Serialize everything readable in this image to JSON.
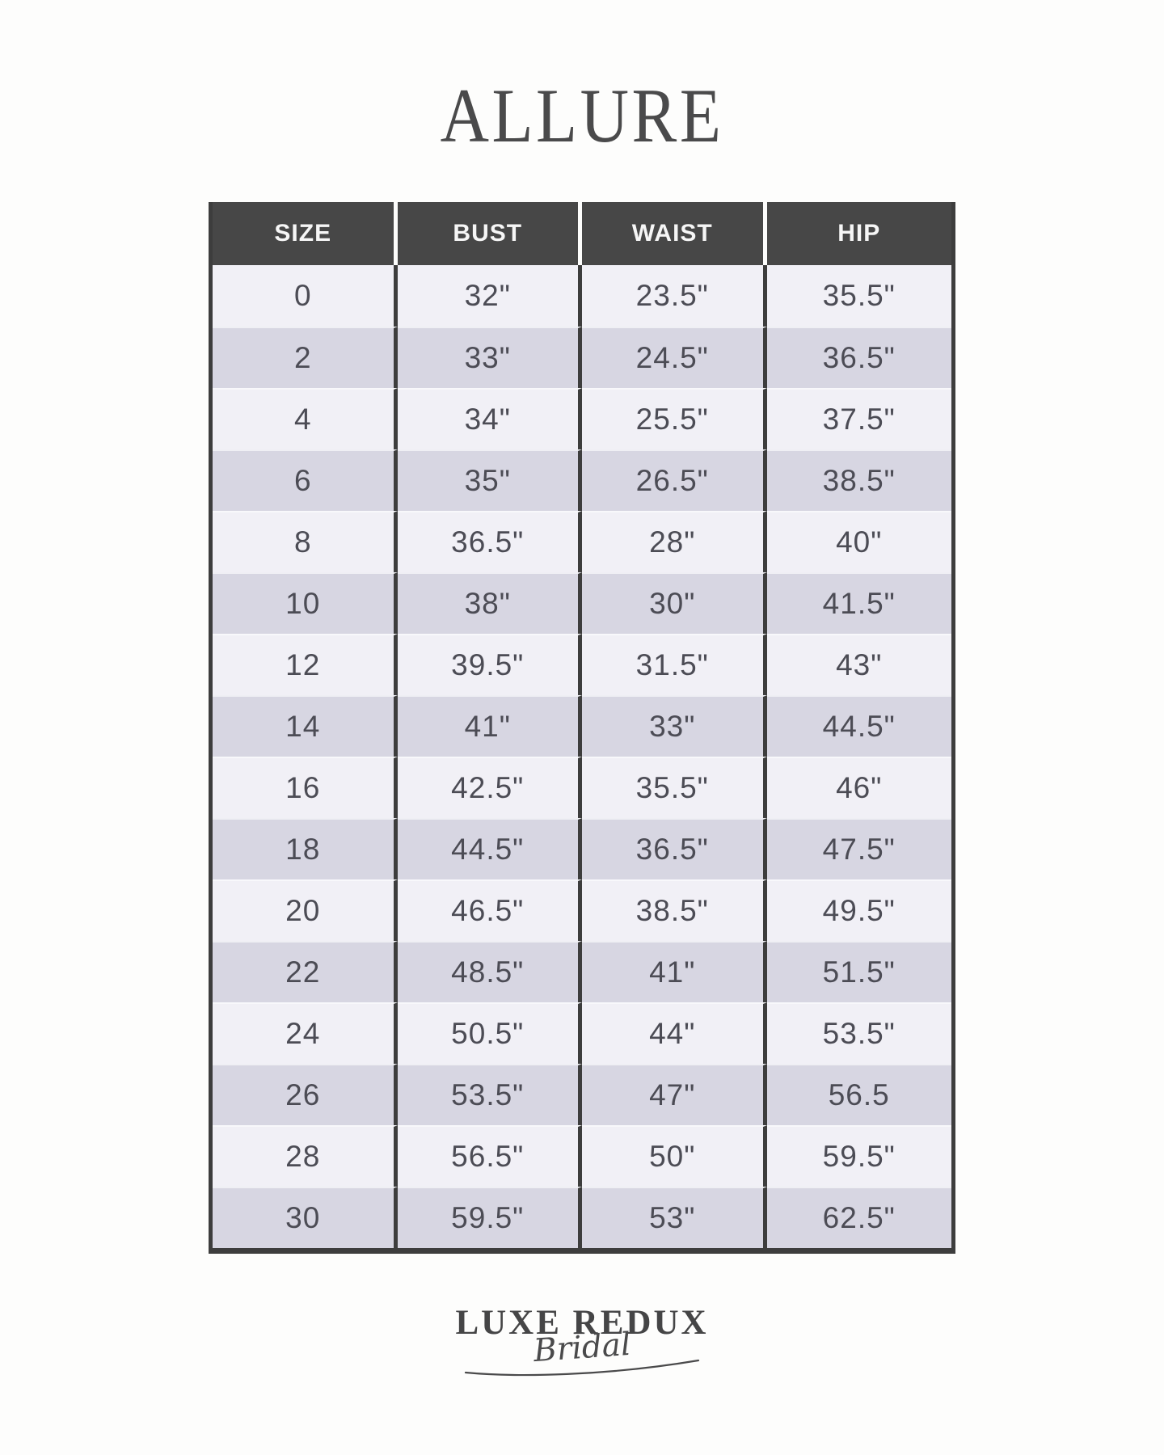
{
  "title": "ALLURE",
  "table": {
    "headers": [
      "SIZE",
      "BUST",
      "WAIST",
      "HIP"
    ],
    "rows": [
      [
        "0",
        "32\"",
        "23.5\"",
        "35.5\""
      ],
      [
        "2",
        "33\"",
        "24.5\"",
        "36.5\""
      ],
      [
        "4",
        "34\"",
        "25.5\"",
        "37.5\""
      ],
      [
        "6",
        "35\"",
        "26.5\"",
        "38.5\""
      ],
      [
        "8",
        "36.5\"",
        "28\"",
        "40\""
      ],
      [
        "10",
        "38\"",
        "30\"",
        "41.5\""
      ],
      [
        "12",
        "39.5\"",
        "31.5\"",
        "43\""
      ],
      [
        "14",
        "41\"",
        "33\"",
        "44.5\""
      ],
      [
        "16",
        "42.5\"",
        "35.5\"",
        "46\""
      ],
      [
        "18",
        "44.5\"",
        "36.5\"",
        "47.5\""
      ],
      [
        "20",
        "46.5\"",
        "38.5\"",
        "49.5\""
      ],
      [
        "22",
        "48.5\"",
        "41\"",
        "51.5\""
      ],
      [
        "24",
        "50.5\"",
        "44\"",
        "53.5\""
      ],
      [
        "26",
        "53.5\"",
        "47\"",
        "56.5"
      ],
      [
        "28",
        "56.5\"",
        "50\"",
        "59.5\""
      ],
      [
        "30",
        "59.5\"",
        "53\"",
        "62.5\""
      ]
    ]
  },
  "logo": {
    "name": "LUXE REDUX",
    "tagline": "Bridal"
  },
  "colors": {
    "page_background": "#fdfdfc",
    "header_background": "#474747",
    "header_text": "#f6f6f6",
    "row_light": "#f1f0f6",
    "row_dark": "#d7d6e2",
    "table_border": "#3d3d3d",
    "cell_text": "#4c4c55",
    "title_text": "#4a4a4b"
  }
}
